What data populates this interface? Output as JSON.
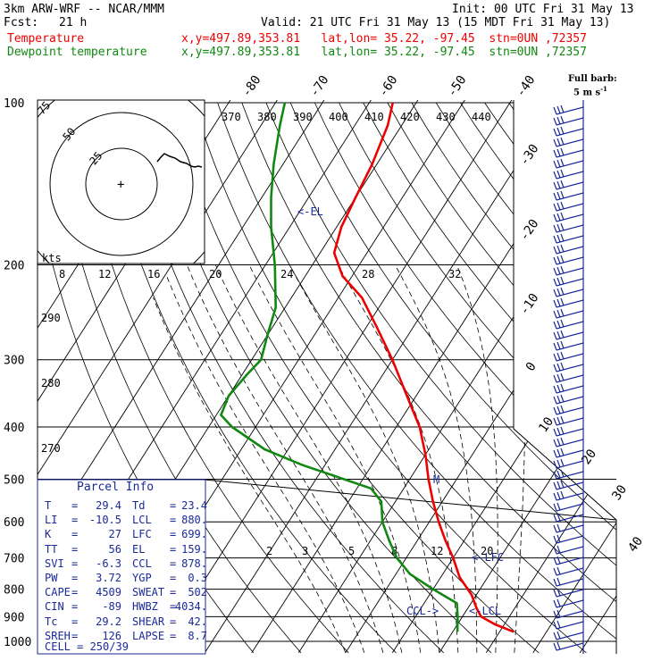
{
  "header": {
    "model": "3km ARW-WRF -- NCAR/MMM",
    "init": "Init: 00 UTC Fri 31 May 13",
    "fcst_label": "Fcst:",
    "fcst_value": "21 h",
    "valid": "Valid: 21 UTC Fri 31 May 13 (15 MDT Fri 31 May 13)",
    "temperature_label": "Temperature",
    "dewpoint_label": "Dewpoint temperature",
    "location_info": "x,y=497.89,353.81   lat,lon= 35.22, -97.45  stn=0UN ,72357"
  },
  "colors": {
    "temperature": "#ee0000",
    "dewpoint": "#118811",
    "text_blue": "#1a2a99",
    "grid": "#000000"
  },
  "parcel_info": {
    "title": "Parcel Info",
    "rows": [
      {
        "k1": "T",
        "v1": "29.4",
        "k2": "Td",
        "v2": "23.4"
      },
      {
        "k1": "LI",
        "v1": "-10.5",
        "k2": "LCL",
        "v2": "880."
      },
      {
        "k1": "K",
        "v1": "27",
        "k2": "LFC",
        "v2": "699."
      },
      {
        "k1": "TT",
        "v1": "56",
        "k2": "EL",
        "v2": "159."
      },
      {
        "k1": "SVI",
        "v1": "-6.3",
        "k2": "CCL",
        "v2": "878."
      },
      {
        "k1": "PW",
        "v1": "3.72",
        "k2": "YGP",
        "v2": "0.3"
      },
      {
        "k1": "CAPE",
        "v1": "4509",
        "k2": "SWEAT",
        "v2": "502"
      },
      {
        "k1": "CIN",
        "v1": "-89",
        "k2": "HWBZ",
        "v2": "4034."
      },
      {
        "k1": "Tc",
        "v1": "29.2",
        "k2": "SHEAR",
        "v2": "42."
      },
      {
        "k1": "SREH",
        "v1": "126",
        "k2": "LAPSE",
        "v2": "8.7"
      }
    ],
    "cell": "CELL = 250/39"
  },
  "hodograph": {
    "units": "kts",
    "ring_labels": [
      "75",
      "50",
      "25"
    ],
    "plus": "+"
  },
  "barb_legend": {
    "line1": "Full barb:",
    "line2": "5 m s"
  },
  "annotations": {
    "el": "<-EL",
    "lfc": "<-LFC",
    "lcl": "<-LCL",
    "ccl": "CCL->",
    "m": "M"
  },
  "theta_labels": [
    "370",
    "380",
    "390",
    "400",
    "410",
    "420",
    "430",
    "440"
  ],
  "theta_labels_low": [
    "290",
    "280",
    "270"
  ],
  "mixing_labels_upper": [
    "8",
    "12",
    "16",
    "20",
    "24",
    "28",
    "32"
  ],
  "mixing_labels_lower": [
    "2",
    "3",
    "5",
    "8",
    "12",
    "20"
  ],
  "chart_data": {
    "type": "line",
    "title": "",
    "xlabel": "",
    "ylabel": "",
    "y_scale": "log-pressure",
    "ylim_hpa": [
      1000,
      100
    ],
    "pressure_ticks": [
      100,
      200,
      300,
      400,
      500,
      600,
      700,
      800,
      900,
      1000
    ],
    "isotherm_labels": [
      {
        "t": -80,
        "label": "-80"
      },
      {
        "t": -70,
        "label": "-70"
      },
      {
        "t": -60,
        "label": "-60"
      },
      {
        "t": -50,
        "label": "-50"
      },
      {
        "t": -40,
        "label": "-40"
      },
      {
        "t": -30,
        "label": "-30"
      },
      {
        "t": -20,
        "label": "-20"
      },
      {
        "t": -10,
        "label": "-10"
      },
      {
        "t": 0,
        "label": "0"
      },
      {
        "t": 10,
        "label": "10"
      },
      {
        "t": 20,
        "label": "20"
      },
      {
        "t": 30,
        "label": "30"
      },
      {
        "t": 40,
        "label": "40"
      }
    ],
    "series": [
      {
        "name": "Temperature",
        "color": "#ee0000",
        "points": [
          {
            "p": 960,
            "t": 33
          },
          {
            "p": 930,
            "t": 28
          },
          {
            "p": 900,
            "t": 24
          },
          {
            "p": 870,
            "t": 22
          },
          {
            "p": 820,
            "t": 19
          },
          {
            "p": 760,
            "t": 14
          },
          {
            "p": 700,
            "t": 10
          },
          {
            "p": 650,
            "t": 6
          },
          {
            "p": 600,
            "t": 2
          },
          {
            "p": 550,
            "t": -2
          },
          {
            "p": 500,
            "t": -6
          },
          {
            "p": 450,
            "t": -10
          },
          {
            "p": 400,
            "t": -15
          },
          {
            "p": 350,
            "t": -22
          },
          {
            "p": 300,
            "t": -30
          },
          {
            "p": 260,
            "t": -38
          },
          {
            "p": 230,
            "t": -45
          },
          {
            "p": 210,
            "t": -52
          },
          {
            "p": 190,
            "t": -57
          },
          {
            "p": 170,
            "t": -59
          },
          {
            "p": 150,
            "t": -60
          },
          {
            "p": 130,
            "t": -61
          },
          {
            "p": 110,
            "t": -63
          },
          {
            "p": 100,
            "t": -65
          }
        ]
      },
      {
        "name": "Dewpoint temperature",
        "color": "#118811",
        "points": [
          {
            "p": 960,
            "t": 21
          },
          {
            "p": 900,
            "t": 19
          },
          {
            "p": 850,
            "t": 17
          },
          {
            "p": 800,
            "t": 10
          },
          {
            "p": 750,
            "t": 3
          },
          {
            "p": 700,
            "t": -2
          },
          {
            "p": 650,
            "t": -6
          },
          {
            "p": 600,
            "t": -10
          },
          {
            "p": 550,
            "t": -13
          },
          {
            "p": 520,
            "t": -17
          },
          {
            "p": 500,
            "t": -24
          },
          {
            "p": 470,
            "t": -35
          },
          {
            "p": 440,
            "t": -45
          },
          {
            "p": 400,
            "t": -55
          },
          {
            "p": 380,
            "t": -59
          },
          {
            "p": 350,
            "t": -60
          },
          {
            "p": 320,
            "t": -59
          },
          {
            "p": 300,
            "t": -58
          },
          {
            "p": 270,
            "t": -60
          },
          {
            "p": 240,
            "t": -62
          },
          {
            "p": 200,
            "t": -68
          },
          {
            "p": 170,
            "t": -74
          },
          {
            "p": 150,
            "t": -78
          },
          {
            "p": 130,
            "t": -82
          },
          {
            "p": 110,
            "t": -86
          },
          {
            "p": 100,
            "t": -88
          }
        ]
      }
    ]
  }
}
